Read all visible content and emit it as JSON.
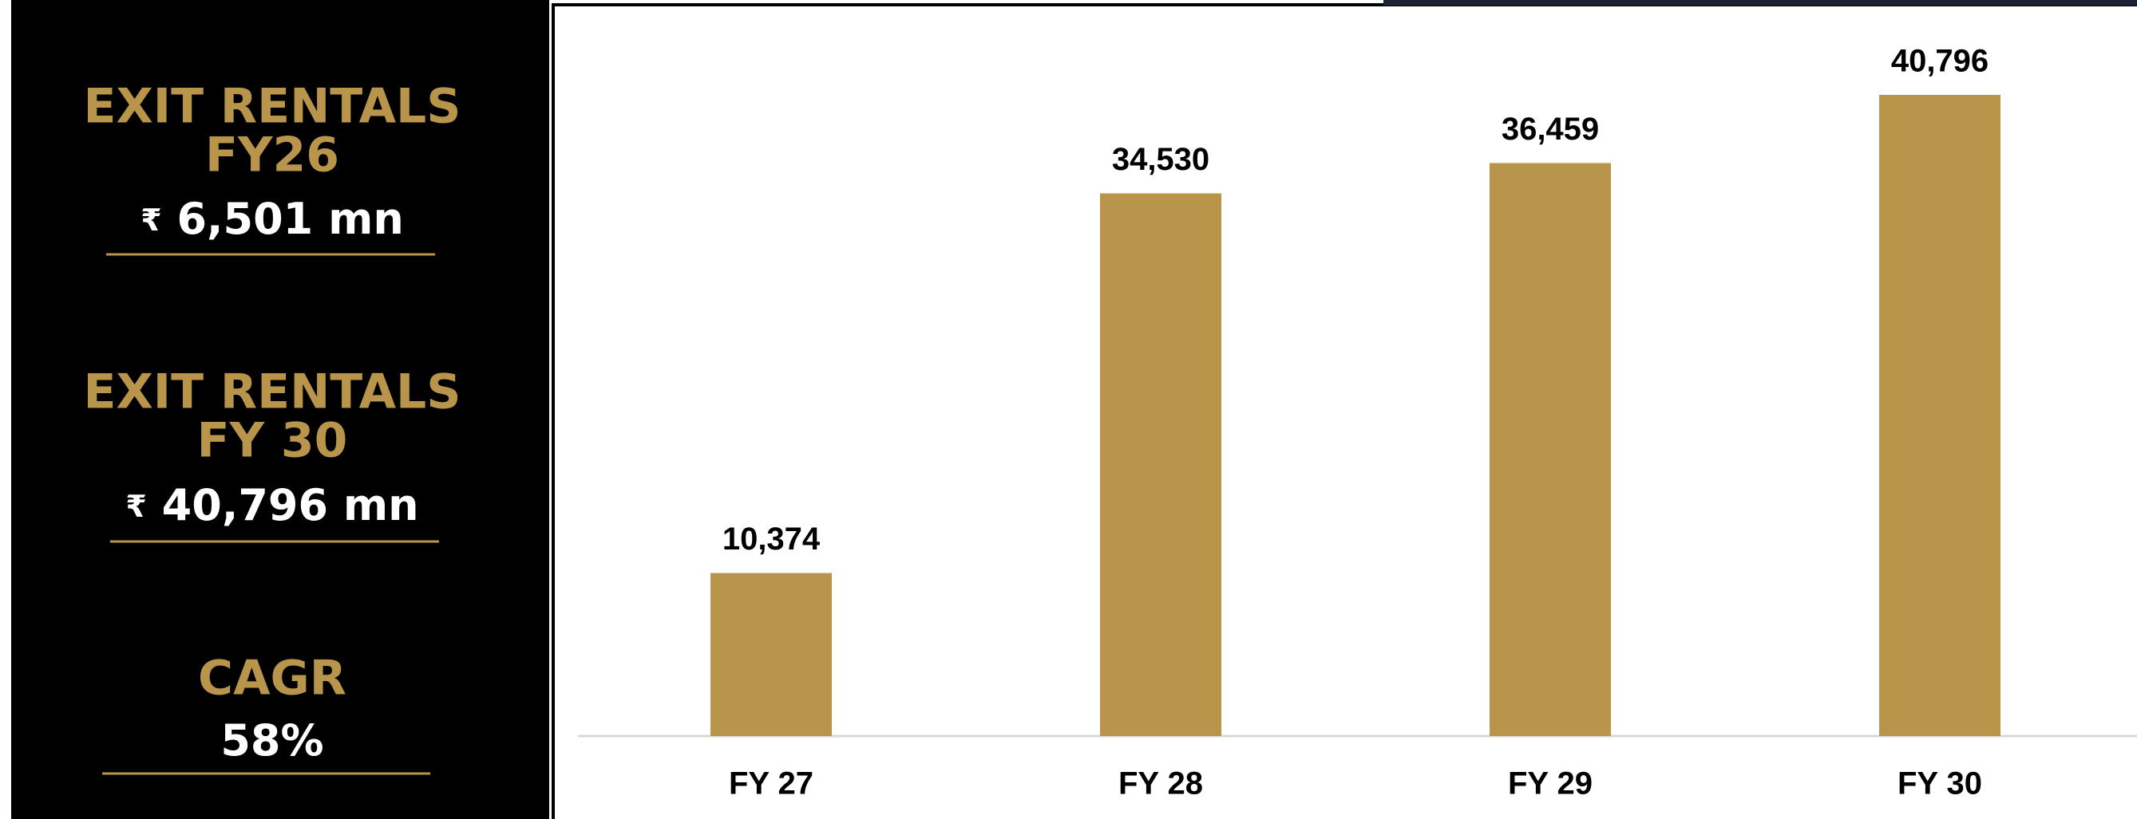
{
  "panel": {
    "items": [
      {
        "title_lines": [
          "EXIT RENTALS",
          "FY26"
        ],
        "currency": "₹",
        "amount": "6,501",
        "unit": "mn"
      },
      {
        "title_lines": [
          "EXIT RENTALS",
          "FY 30"
        ],
        "currency": "₹",
        "amount": "40,796",
        "unit": "mn"
      },
      {
        "title_lines": [
          "CAGR"
        ],
        "amount": "58%"
      }
    ]
  },
  "chart_data": {
    "type": "bar",
    "categories": [
      "FY 27",
      "FY 28",
      "FY 29",
      "FY 30"
    ],
    "values": [
      10374,
      34530,
      36459,
      40796
    ],
    "value_labels": [
      "10,374",
      "34,530",
      "36,459",
      "40,796"
    ],
    "color": "#b8954a"
  }
}
